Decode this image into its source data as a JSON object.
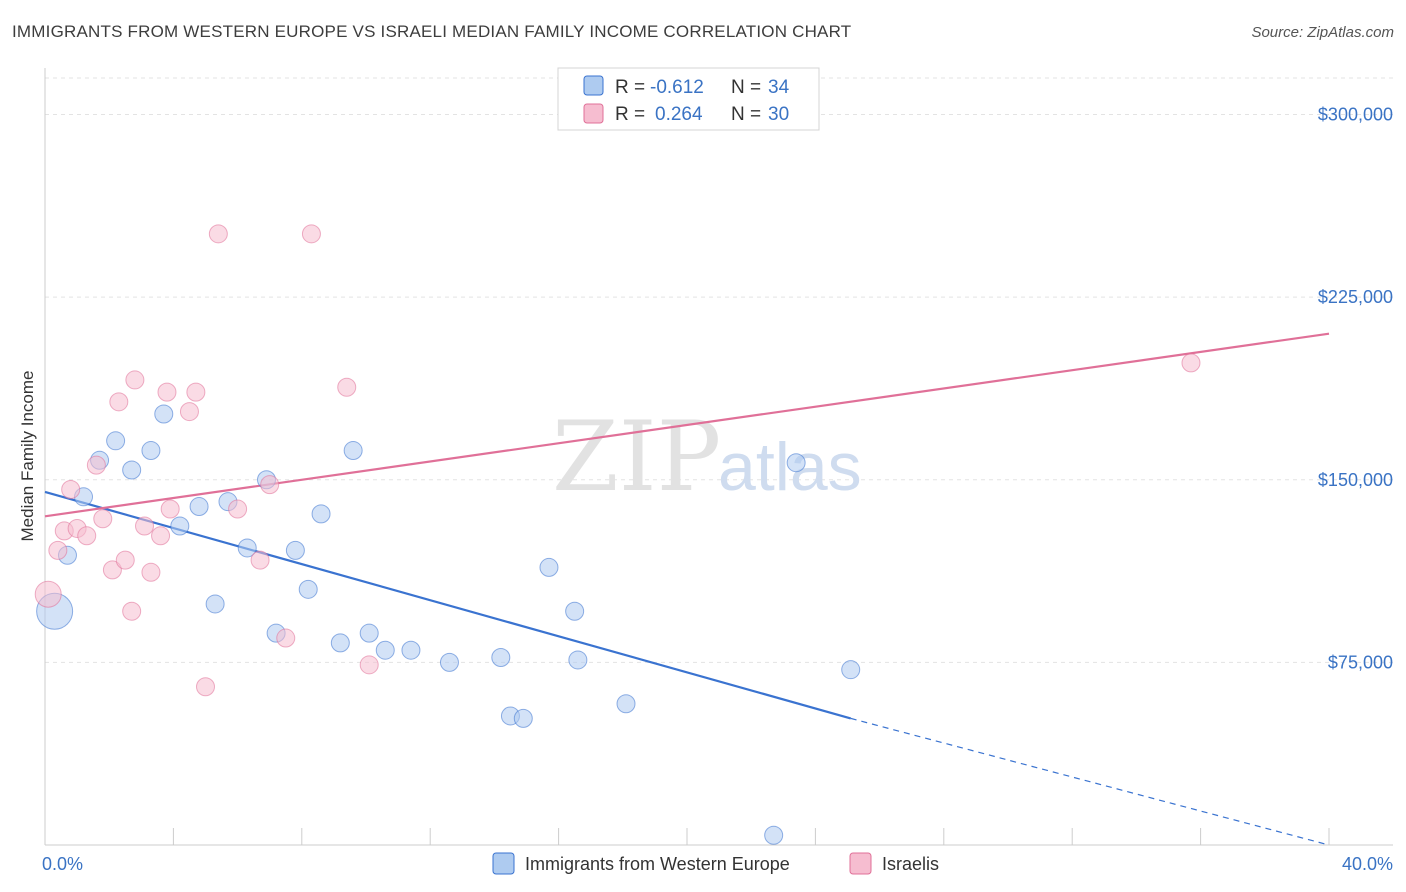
{
  "header": {
    "title": "IMMIGRANTS FROM WESTERN EUROPE VS ISRAELI MEDIAN FAMILY INCOME CORRELATION CHART",
    "source": "Source: ZipAtlas.com"
  },
  "watermark": {
    "zip": "ZIP",
    "atlas": "atlas"
  },
  "colors": {
    "blue": "#3a73d0",
    "blue_fill": "#aecbf0",
    "pink": "#e07098",
    "pink_fill": "#f6bdd0",
    "tick_text": "#3a73c4"
  },
  "legend": {
    "rows": [
      {
        "r_label": "R = ",
        "r_value": "-0.612",
        "n_label": "N = ",
        "n_value": "34"
      },
      {
        "r_label": "R = ",
        "r_value": "0.264",
        "n_label": "N = ",
        "n_value": "30"
      }
    ]
  },
  "chart_data": {
    "type": "scatter",
    "title": "IMMIGRANTS FROM WESTERN EUROPE VS ISRAELI MEDIAN FAMILY INCOME CORRELATION CHART",
    "xlabel": "",
    "ylabel": "Median Family Income",
    "xlim": [
      0,
      40
    ],
    "ylim": [
      0,
      315000
    ],
    "x_tick_labels": [
      "0.0%",
      "40.0%"
    ],
    "y_ticks": [
      {
        "value": 75000,
        "label": "$75,000"
      },
      {
        "value": 150000,
        "label": "$150,000"
      },
      {
        "value": 225000,
        "label": "$225,000"
      },
      {
        "value": 300000,
        "label": "$300,000"
      }
    ],
    "series": [
      {
        "name": "Immigrants from Western Europe",
        "color": "blue",
        "points": [
          {
            "x": 0.3,
            "y": 96000,
            "size": "large"
          },
          {
            "x": 0.7,
            "y": 119000
          },
          {
            "x": 1.2,
            "y": 143000
          },
          {
            "x": 1.7,
            "y": 158000
          },
          {
            "x": 2.2,
            "y": 166000
          },
          {
            "x": 2.7,
            "y": 154000
          },
          {
            "x": 3.3,
            "y": 162000
          },
          {
            "x": 3.7,
            "y": 177000
          },
          {
            "x": 4.2,
            "y": 131000
          },
          {
            "x": 4.8,
            "y": 139000
          },
          {
            "x": 5.3,
            "y": 99000
          },
          {
            "x": 5.7,
            "y": 141000
          },
          {
            "x": 6.3,
            "y": 122000
          },
          {
            "x": 6.9,
            "y": 150000
          },
          {
            "x": 7.2,
            "y": 87000
          },
          {
            "x": 7.8,
            "y": 121000
          },
          {
            "x": 8.2,
            "y": 105000
          },
          {
            "x": 8.6,
            "y": 136000
          },
          {
            "x": 9.2,
            "y": 83000
          },
          {
            "x": 9.6,
            "y": 162000
          },
          {
            "x": 10.1,
            "y": 87000
          },
          {
            "x": 10.6,
            "y": 80000
          },
          {
            "x": 11.4,
            "y": 80000
          },
          {
            "x": 12.6,
            "y": 75000
          },
          {
            "x": 14.2,
            "y": 77000
          },
          {
            "x": 14.5,
            "y": 53000
          },
          {
            "x": 14.9,
            "y": 52000
          },
          {
            "x": 15.7,
            "y": 114000
          },
          {
            "x": 16.5,
            "y": 96000
          },
          {
            "x": 16.6,
            "y": 76000
          },
          {
            "x": 18.1,
            "y": 58000
          },
          {
            "x": 22.7,
            "y": 4000
          },
          {
            "x": 23.4,
            "y": 157000
          },
          {
            "x": 25.1,
            "y": 72000
          }
        ],
        "trend": {
          "x1": 0,
          "y1": 145000,
          "x2": 25.1,
          "y2": 52000,
          "dash_to_x": 40,
          "dash_to_y": 0
        }
      },
      {
        "name": "Israelis",
        "color": "pink",
        "points": [
          {
            "x": 0.1,
            "y": 103000,
            "size": "medium"
          },
          {
            "x": 0.4,
            "y": 121000
          },
          {
            "x": 0.6,
            "y": 129000
          },
          {
            "x": 0.8,
            "y": 146000
          },
          {
            "x": 1.0,
            "y": 130000
          },
          {
            "x": 1.3,
            "y": 127000
          },
          {
            "x": 1.6,
            "y": 156000
          },
          {
            "x": 1.8,
            "y": 134000
          },
          {
            "x": 2.1,
            "y": 113000
          },
          {
            "x": 2.3,
            "y": 182000
          },
          {
            "x": 2.5,
            "y": 117000
          },
          {
            "x": 2.7,
            "y": 96000
          },
          {
            "x": 2.8,
            "y": 191000
          },
          {
            "x": 3.1,
            "y": 131000
          },
          {
            "x": 3.3,
            "y": 112000
          },
          {
            "x": 3.6,
            "y": 127000
          },
          {
            "x": 3.8,
            "y": 186000
          },
          {
            "x": 3.9,
            "y": 138000
          },
          {
            "x": 4.5,
            "y": 178000
          },
          {
            "x": 4.7,
            "y": 186000
          },
          {
            "x": 5.0,
            "y": 65000
          },
          {
            "x": 5.4,
            "y": 251000
          },
          {
            "x": 6.0,
            "y": 138000
          },
          {
            "x": 6.7,
            "y": 117000
          },
          {
            "x": 7.0,
            "y": 148000
          },
          {
            "x": 7.5,
            "y": 85000
          },
          {
            "x": 8.3,
            "y": 251000
          },
          {
            "x": 9.4,
            "y": 188000
          },
          {
            "x": 10.1,
            "y": 74000
          },
          {
            "x": 35.7,
            "y": 198000
          }
        ],
        "trend": {
          "x1": 0,
          "y1": 135000,
          "x2": 40,
          "y2": 210000
        }
      }
    ]
  },
  "bottom_legend": {
    "items": [
      {
        "label": "Immigrants from Western Europe",
        "color": "blue"
      },
      {
        "label": "Israelis",
        "color": "pink"
      }
    ]
  }
}
